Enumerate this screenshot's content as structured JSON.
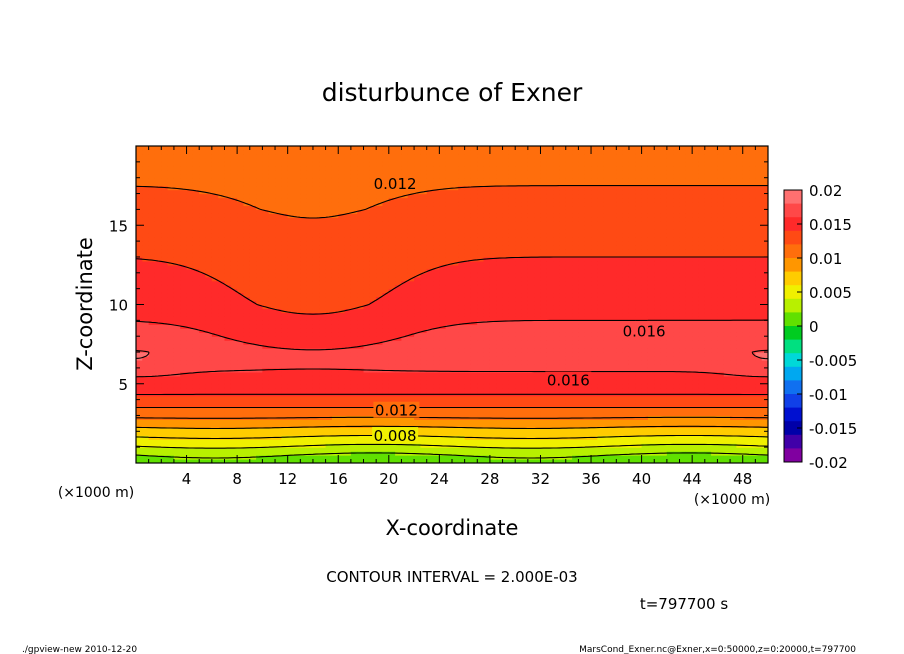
{
  "chart_data": {
    "type": "heatmap",
    "subtype": "filled-contour",
    "title": "disturbunce of Exner",
    "xlabel": "X-coordinate",
    "ylabel": "Z-coordinate",
    "x_unit": "(×1000 m)",
    "y_unit": "(×1000 m)",
    "xlim": [
      0,
      50
    ],
    "ylim": [
      0,
      20
    ],
    "x_ticks": [
      4,
      8,
      12,
      16,
      20,
      24,
      28,
      32,
      36,
      40,
      44,
      48
    ],
    "y_ticks": [
      5,
      10,
      15
    ],
    "grid": false,
    "contour_interval_text": "CONTOUR INTERVAL = 2.000E-03",
    "contour_labels": [
      "0.012",
      "0.016",
      "0.016",
      "0.012",
      "0.008"
    ],
    "colorbar": {
      "labels": [
        "0.02",
        "0.015",
        "0.01",
        "0.005",
        "0",
        "-0.005",
        "-0.01",
        "-0.015",
        "-0.02"
      ],
      "min": -0.02,
      "max": 0.02,
      "levels": [
        {
          "from": 0.018,
          "to": 0.02,
          "color": "#ff7070"
        },
        {
          "from": 0.016,
          "to": 0.018,
          "color": "#ff4848"
        },
        {
          "from": 0.014,
          "to": 0.016,
          "color": "#ff2a2a"
        },
        {
          "from": 0.012,
          "to": 0.014,
          "color": "#ff4a14"
        },
        {
          "from": 0.01,
          "to": 0.012,
          "color": "#ff6e0c"
        },
        {
          "from": 0.008,
          "to": 0.01,
          "color": "#ff9600"
        },
        {
          "from": 0.006,
          "to": 0.008,
          "color": "#ffcc00"
        },
        {
          "from": 0.004,
          "to": 0.006,
          "color": "#f0f000"
        },
        {
          "from": 0.002,
          "to": 0.004,
          "color": "#b8f000"
        },
        {
          "from": 0.0,
          "to": 0.002,
          "color": "#60e000"
        },
        {
          "from": -0.002,
          "to": 0.0,
          "color": "#00cc20"
        },
        {
          "from": -0.004,
          "to": -0.002,
          "color": "#00e080"
        },
        {
          "from": -0.006,
          "to": -0.004,
          "color": "#00d8d8"
        },
        {
          "from": -0.008,
          "to": -0.006,
          "color": "#00a8f0"
        },
        {
          "from": -0.01,
          "to": -0.008,
          "color": "#1070f0"
        },
        {
          "from": -0.012,
          "to": -0.01,
          "color": "#1040e8"
        },
        {
          "from": -0.014,
          "to": -0.012,
          "color": "#0010d0"
        },
        {
          "from": -0.016,
          "to": -0.014,
          "color": "#0000a8"
        },
        {
          "from": -0.018,
          "to": -0.016,
          "color": "#4000a8"
        },
        {
          "from": -0.02,
          "to": -0.018,
          "color": "#8000a0"
        }
      ]
    },
    "field_profile": {
      "z": [
        0,
        0.5,
        1,
        1.5,
        2,
        2.5,
        3,
        3.5,
        4,
        5,
        6,
        7,
        8,
        9,
        10,
        11,
        12,
        13,
        14,
        15,
        16,
        17,
        18,
        19,
        19.8
      ],
      "value": [
        0.0005,
        0.002,
        0.0038,
        0.0055,
        0.0072,
        0.0088,
        0.0105,
        0.012,
        0.0135,
        0.015,
        0.0163,
        0.017,
        0.0166,
        0.016,
        0.0152,
        0.0148,
        0.0144,
        0.014,
        0.0136,
        0.0132,
        0.0126,
        0.0122,
        0.0118,
        0.0112,
        0.011
      ]
    }
  },
  "time_label": "t=797700 s",
  "footer": {
    "left": "./gpview-new  2010-12-20",
    "right": "MarsCond_Exner.nc@Exner,x=0:50000,z=0:20000,t=797700"
  }
}
